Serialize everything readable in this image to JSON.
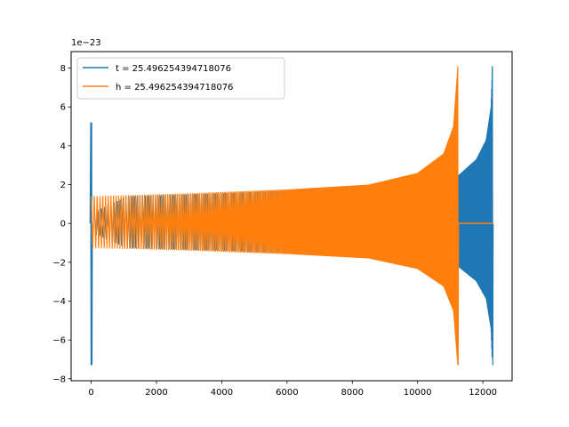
{
  "chart_data": {
    "type": "line",
    "title": "",
    "xlabel": "",
    "ylabel": "",
    "y_offset_label": "1e−23",
    "xlim": [
      -615,
      12895
    ],
    "ylim": [
      -8.1,
      8.85
    ],
    "x_ticks": [
      0,
      2000,
      4000,
      6000,
      8000,
      10000,
      12000
    ],
    "x_tick_labels": [
      "0",
      "2000",
      "4000",
      "6000",
      "8000",
      "10000",
      "12000"
    ],
    "y_ticks": [
      -8,
      -6,
      -4,
      -2,
      0,
      2,
      4,
      6,
      8
    ],
    "y_tick_labels": [
      "−8",
      "−6",
      "−4",
      "−2",
      "0",
      "2",
      "4",
      "6",
      "8"
    ],
    "grid": false,
    "legend_position": "top-left",
    "series": [
      {
        "name": "t = 25.496254394718076",
        "color": "#1f77b4",
        "initial_spike": {
          "x": 0,
          "max": 5.2,
          "min": -7.3
        },
        "envelope": [
          {
            "x": 100,
            "amp": 0.6
          },
          {
            "x": 1100,
            "amp": 1.4
          },
          {
            "x": 4000,
            "amp": 1.55
          },
          {
            "x": 7000,
            "amp": 1.75
          },
          {
            "x": 9000,
            "amp": 2.0
          },
          {
            "x": 10500,
            "amp": 2.6
          },
          {
            "x": 11200,
            "amp": 2.4
          },
          {
            "x": 11800,
            "amp": 3.3
          },
          {
            "x": 12100,
            "amp": 4.3
          },
          {
            "x": 12250,
            "amp": 6.0
          },
          {
            "x": 12290,
            "amp": 8.1
          }
        ],
        "peak": {
          "x": 12290,
          "max": 8.1,
          "min": -7.3
        }
      },
      {
        "name": "h = 25.496254394718076",
        "color": "#ff7f0e",
        "envelope": [
          {
            "x": 0,
            "amp": 1.4
          },
          {
            "x": 3000,
            "amp": 1.55
          },
          {
            "x": 6000,
            "amp": 1.75
          },
          {
            "x": 8500,
            "amp": 2.0
          },
          {
            "x": 10000,
            "amp": 2.6
          },
          {
            "x": 10800,
            "amp": 3.6
          },
          {
            "x": 11100,
            "amp": 5.0
          },
          {
            "x": 11230,
            "amp": 8.1
          }
        ],
        "peak": {
          "x": 11230,
          "max": 8.1,
          "min": -7.3
        },
        "flat_after": {
          "from": 11250,
          "to": 12300,
          "value": 0
        }
      }
    ]
  }
}
